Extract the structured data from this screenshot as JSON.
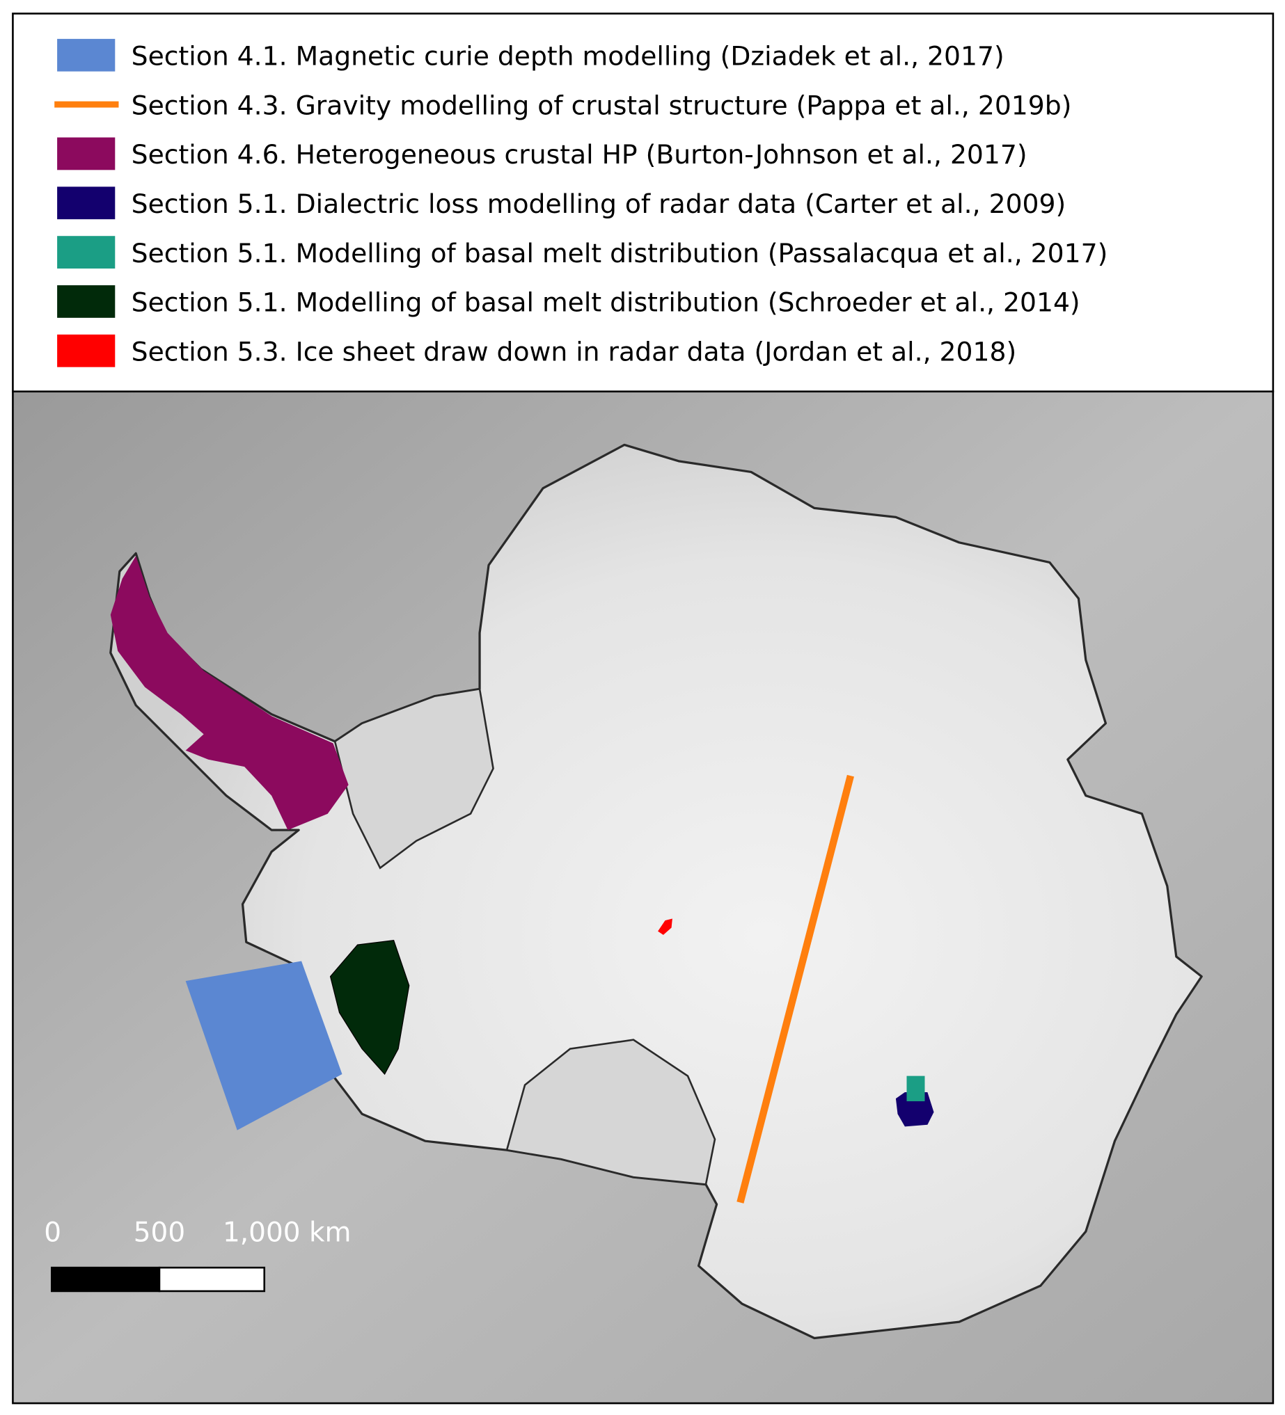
{
  "legend": {
    "items": [
      {
        "label": "Section 4.1. Magnetic curie depth modelling (Dziadek et al., 2017)",
        "color": "#5b87d2",
        "symbol": "fill"
      },
      {
        "label": "Section 4.3. Gravity modelling of crustal structure (Pappa et al., 2019b)",
        "color": "#ff7f0e",
        "symbol": "line"
      },
      {
        "label": "Section 4.6. Heterogeneous crustal HP (Burton-Johnson et al., 2017)",
        "color": "#8c0a5e",
        "symbol": "fill"
      },
      {
        "label": "Section 5.1. Dialectric loss modelling of radar data (Carter et al., 2009)",
        "color": "#13006e",
        "symbol": "fill"
      },
      {
        "label": "Section 5.1. Modelling of basal melt distribution (Passalacqua et al., 2017)",
        "color": "#1b9e85",
        "symbol": "fill"
      },
      {
        "label": "Section 5.1. Modelling of basal melt distribution (Schroeder et al., 2014)",
        "color": "#012a0a",
        "symbol": "fill"
      },
      {
        "label": "Section 5.3. Ice sheet draw down in radar data (Jordan et al., 2018)",
        "color": "#ff0000",
        "symbol": "fill"
      }
    ]
  },
  "scalebar": {
    "labels": [
      "0",
      "500",
      "1,000 km"
    ]
  }
}
